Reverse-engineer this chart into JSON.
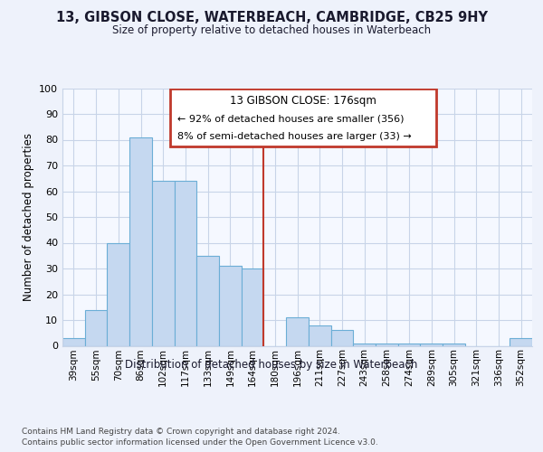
{
  "title": "13, GIBSON CLOSE, WATERBEACH, CAMBRIDGE, CB25 9HY",
  "subtitle": "Size of property relative to detached houses in Waterbeach",
  "xlabel": "Distribution of detached houses by size in Waterbeach",
  "ylabel": "Number of detached properties",
  "footer1": "Contains HM Land Registry data © Crown copyright and database right 2024.",
  "footer2": "Contains public sector information licensed under the Open Government Licence v3.0.",
  "annotation_line1": "13 GIBSON CLOSE: 176sqm",
  "annotation_line2": "← 92% of detached houses are smaller (356)",
  "annotation_line3": "8% of semi-detached houses are larger (33) →",
  "property_bin_index": 9,
  "categories": [
    "39sqm",
    "55sqm",
    "70sqm",
    "86sqm",
    "102sqm",
    "117sqm",
    "133sqm",
    "149sqm",
    "164sqm",
    "180sqm",
    "196sqm",
    "211sqm",
    "227sqm",
    "243sqm",
    "258sqm",
    "274sqm",
    "289sqm",
    "305sqm",
    "321sqm",
    "336sqm",
    "352sqm"
  ],
  "values": [
    3,
    14,
    40,
    81,
    64,
    64,
    35,
    31,
    30,
    0,
    11,
    8,
    6,
    1,
    1,
    1,
    1,
    1,
    0,
    0,
    3
  ],
  "bar_color": "#c5d8f0",
  "bar_edge_color": "#6baed6",
  "highlight_color": "#c0392b",
  "annotation_box_color": "#c0392b",
  "plot_bg_color": "#f5f8ff",
  "background_color": "#eef2fb",
  "ylim": [
    0,
    100
  ],
  "yticks": [
    0,
    10,
    20,
    30,
    40,
    50,
    60,
    70,
    80,
    90,
    100
  ],
  "grid_color": "#c8d4e8"
}
